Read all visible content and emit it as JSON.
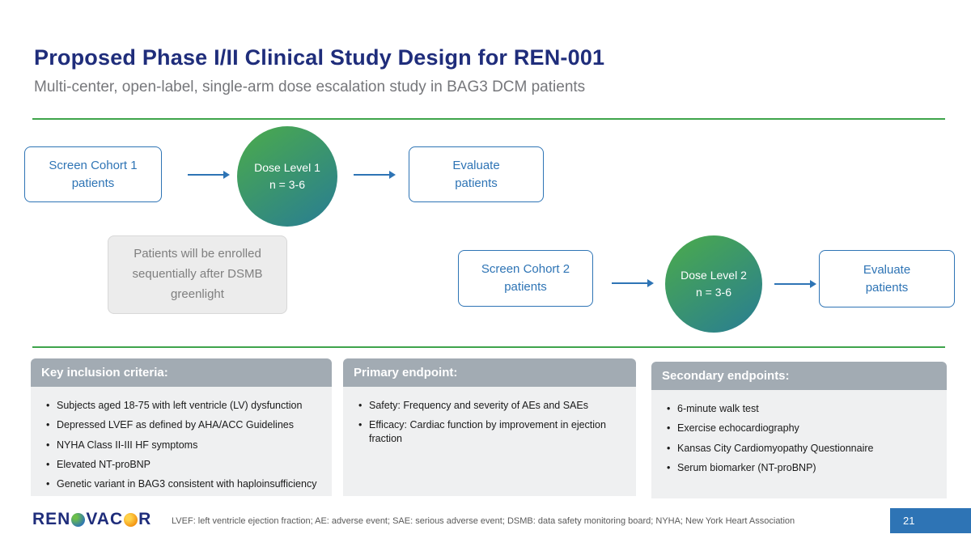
{
  "header": {
    "title": "Proposed Phase I/II Clinical Study Design for REN-001",
    "subtitle": "Multi-center, open-label, single-arm dose escalation study in BAG3 DCM patients"
  },
  "flow": {
    "screen1": "Screen Cohort 1\npatients",
    "dose1": "Dose Level 1\nn = 3-6",
    "evaluate1": "Evaluate\npatients",
    "note": "Patients will be enrolled sequentially after DSMB greenlight",
    "screen2": "Screen Cohort 2\npatients",
    "dose2": "Dose Level 2\nn = 3-6",
    "evaluate2": "Evaluate\npatients"
  },
  "panels": [
    {
      "title": "Key inclusion criteria:",
      "bullets": [
        "Subjects aged 18-75 with left ventricle (LV) dysfunction",
        "Depressed LVEF as defined by AHA/ACC Guidelines",
        "NYHA Class II-III HF symptoms",
        "Elevated NT-proBNP",
        "Genetic variant in BAG3 consistent with haploinsufficiency"
      ]
    },
    {
      "title": "Primary endpoint:",
      "bullets": [
        "Safety: Frequency and severity of AEs and SAEs",
        "Efficacy: Cardiac function by improvement in ejection fraction"
      ]
    },
    {
      "title": "Secondary endpoints:",
      "bullets": [
        "6-minute walk test",
        "Exercise echocardiography",
        "Kansas City Cardiomyopathy Questionnaire",
        "Serum biomarker (NT-proBNP)"
      ]
    }
  ],
  "footer": {
    "logo_part1": "REN",
    "logo_part2": "VAC",
    "logo_part3": "R",
    "footnote": "LVEF: left ventricle ejection fraction; AE: adverse event; SAE: serious adverse event; DSMB: data safety monitoring board; NYHA; New York Heart Association",
    "page_number": "21"
  },
  "colors": {
    "navy": "#1f2d7b",
    "blue": "#2e74b5",
    "green": "#3ea44b",
    "teal": "#2a7f90",
    "panel_header": "#a2abb3"
  }
}
